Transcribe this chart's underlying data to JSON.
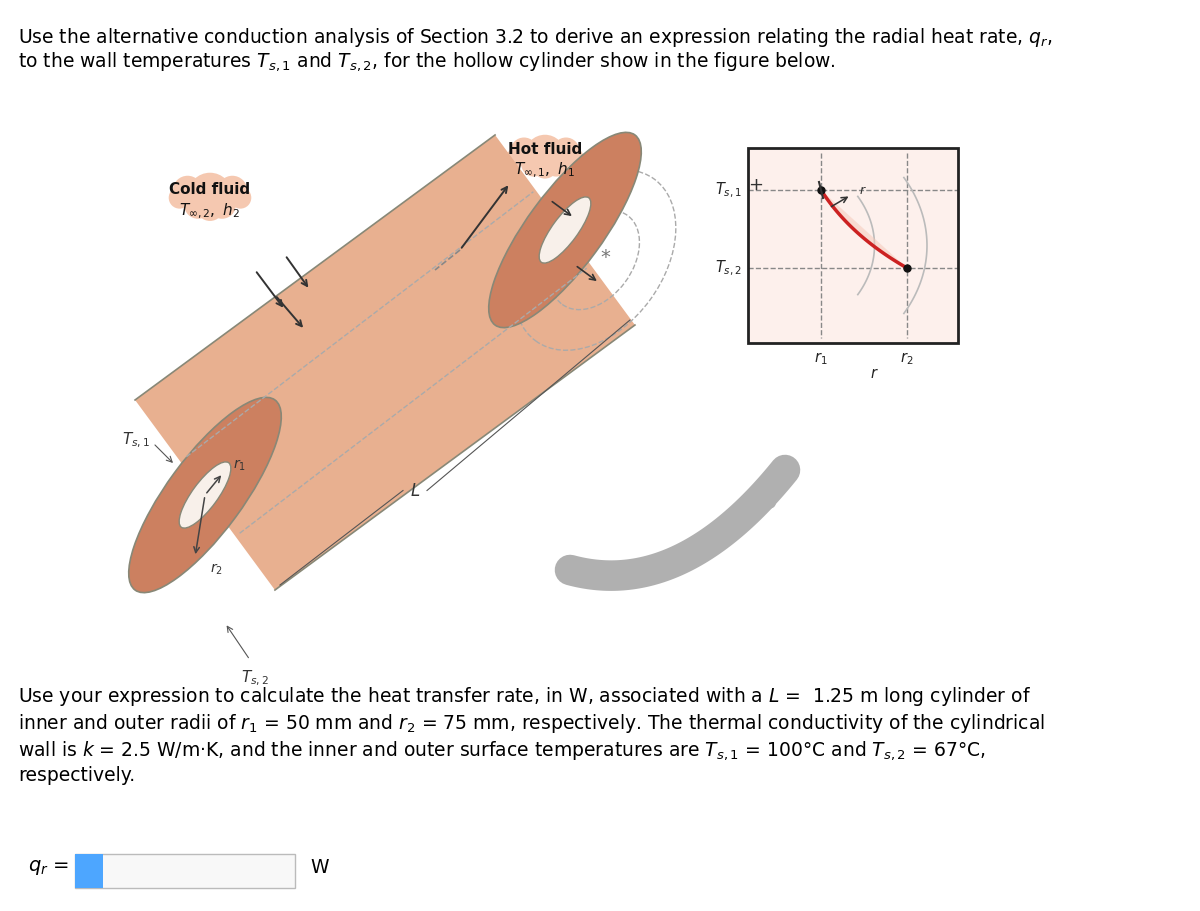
{
  "title_line1": "Use the alternative conduction analysis of Section 3.2 to derive an expression relating the radial heat rate, $q_r$,",
  "title_line2": "to the wall temperatures $T_{s,1}$ and $T_{s,2}$, for the hollow cylinder show in the figure below.",
  "para2_line1": "Use your expression to calculate the heat transfer rate, in W, associated with a $L$ =  1.25 m long cylinder of",
  "para2_line2": "inner and outer radii of $r_1$ = 50 mm and $r_2$ = 75 mm, respectively. The thermal conductivity of the cylindrical",
  "para2_line3": "wall is $k$ = 2.5 W/m·K, and the inner and outer surface temperatures are $T_{s,1}$ = 100°C and $T_{s,2}$ = 67°C,",
  "para2_line4": "respectively.",
  "answer_label": "$q_r$ =",
  "answer_unit": "W",
  "bg_color": "#ffffff",
  "text_color": "#000000",
  "font_size_title": 13.5,
  "font_size_body": 13.5,
  "input_box_color": "#4da6ff",
  "cylinder_color": "#e8b090",
  "cylinder_color_dark": "#cc8060",
  "cylinder_hole_color": "#f8f0ea",
  "cloud_cold_color": "#f5c8b0",
  "cloud_hot_color": "#f5c8b0",
  "cold_fluid_label": "Cold fluid",
  "cold_fluid_sub": "$T_{\\infty,2},\\ h_2$",
  "hot_fluid_label": "Hot fluid",
  "hot_fluid_sub": "$T_{\\infty,1},\\ h_1$",
  "ts1_label": "$T_{s,1}$",
  "ts2_label_cyl": "$T_{s,2}$",
  "ts1_label_graph": "$T_{s,1}$",
  "ts2_label_graph": "$T_{s,2}$",
  "r1_label": "$r_1$",
  "r2_label": "$r_2$",
  "r_label": "$r$",
  "L_label": "$L$",
  "inset_bg": "#fdf0ec",
  "inset_border": "#222222",
  "curve_color": "#cc2222",
  "arrow_color": "#888888"
}
